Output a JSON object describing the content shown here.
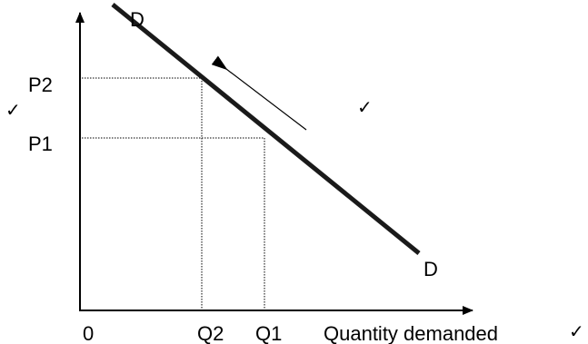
{
  "diagram": {
    "curve_label_top": "D",
    "curve_label_bottom": "D",
    "price_high_label": "P2",
    "price_low_label": "P1",
    "origin_label": "0",
    "qty_low_label": "Q2",
    "qty_high_label": "Q1",
    "x_axis_label": "Quantity demanded",
    "check_mark": "✓"
  }
}
